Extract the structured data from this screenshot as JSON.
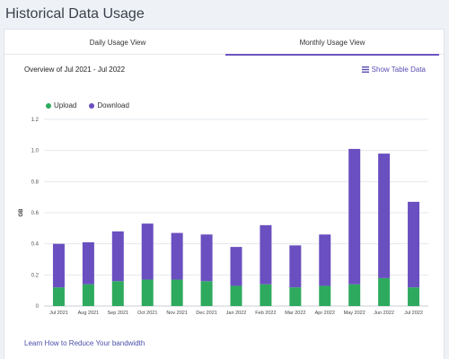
{
  "page": {
    "title": "Historical Data Usage"
  },
  "tabs": [
    {
      "label": "Daily Usage View",
      "active": false
    },
    {
      "label": "Monthly Usage View",
      "active": true
    }
  ],
  "overview": {
    "title": "Overview of Jul 2021 - Jul 2022"
  },
  "show_table": {
    "label": "Show Table Data",
    "icon": "table-icon"
  },
  "footer": {
    "link_label": "Learn How to Reduce Your bandwidth"
  },
  "colors": {
    "upload": "#2eaa5e",
    "download": "#6a4fc0",
    "accent": "#6b55c0"
  },
  "chart_data": {
    "type": "bar",
    "stacked": true,
    "categories": [
      "Jul 2021",
      "Aug 2021",
      "Sep 2021",
      "Oct 2021",
      "Nov 2021",
      "Dec 2021",
      "Jan 2022",
      "Feb 2022",
      "Mar 2022",
      "Apr 2022",
      "May 2022",
      "Jun 2022",
      "Jul 2022"
    ],
    "series": [
      {
        "name": "Upload",
        "values": [
          0.12,
          0.14,
          0.16,
          0.17,
          0.17,
          0.16,
          0.13,
          0.14,
          0.12,
          0.13,
          0.14,
          0.18,
          0.12
        ]
      },
      {
        "name": "Download",
        "values": [
          0.28,
          0.27,
          0.32,
          0.36,
          0.3,
          0.3,
          0.25,
          0.38,
          0.27,
          0.33,
          0.87,
          0.8,
          0.55
        ]
      }
    ],
    "ylabel": "GB",
    "xlabel": "",
    "ylim": [
      0,
      1.2
    ],
    "yticks": [
      0,
      0.2,
      0.4,
      0.6,
      0.8,
      1.0,
      1.2
    ],
    "ytick_labels": [
      "0",
      "0.2",
      "0.4",
      "0.6",
      "0.8",
      "1.0",
      "1.2"
    ],
    "legend_position": "top-left",
    "grid": true
  }
}
